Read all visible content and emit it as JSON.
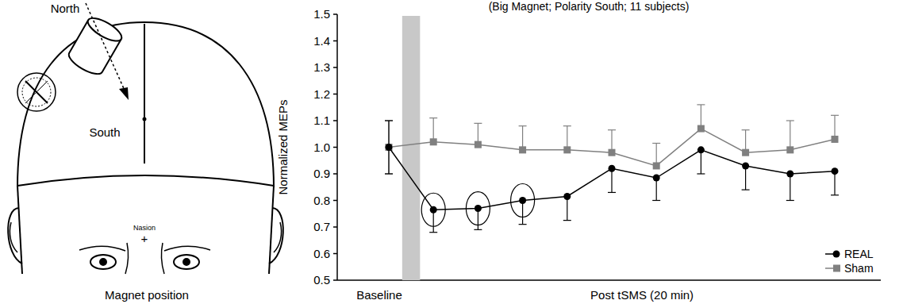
{
  "chart_data": {
    "type": "line",
    "title": "(Big Magnet; Polarity South; 11 subjects)",
    "y_label": "Normalized MEPs",
    "x_label": "Post tSMS (20 min)",
    "categories": [
      "Baseline",
      null,
      null,
      null,
      null,
      null,
      null,
      null,
      null,
      null,
      null
    ],
    "ylim": [
      0.5,
      1.5
    ],
    "yticks": [
      0.5,
      0.6,
      0.7,
      0.8,
      0.9,
      {
        "value": 1,
        "label": "1.0"
      },
      1.1,
      1.2,
      1.3,
      1.4,
      1.5
    ],
    "grid": false,
    "legend": "lower right",
    "series": [
      {
        "name": "REAL",
        "color": "#000000",
        "marker": "circle",
        "line_style": "solid",
        "values": [
          1.0,
          0.765,
          0.77,
          0.8,
          0.815,
          0.92,
          0.885,
          0.99,
          0.93,
          0.9,
          0.91
        ],
        "errors": [
          0.1,
          0.085,
          0.08,
          0.09,
          0.09,
          0.09,
          0.085,
          0.09,
          0.09,
          0.1,
          0.09
        ],
        "significant": [
          false,
          true,
          true,
          true,
          false,
          false,
          false,
          false,
          false,
          false,
          false
        ]
      },
      {
        "name": "Sham",
        "color": "#808080",
        "marker": "square",
        "line_style": "solid",
        "values": [
          1.0,
          1.02,
          1.01,
          0.99,
          0.99,
          0.98,
          0.93,
          1.07,
          0.98,
          0.99,
          1.03
        ],
        "errors": [
          0.1,
          0.09,
          0.08,
          0.09,
          0.09,
          0.085,
          0.085,
          0.09,
          0.085,
          0.11,
          0.09
        ],
        "significant": [
          false,
          false,
          false,
          false,
          false,
          false,
          false,
          false,
          false,
          false,
          false
        ]
      }
    ]
  },
  "diagram": {
    "north": "North",
    "south": "South",
    "nasion": "Nasion",
    "cross": "+",
    "caption": "Magnet position"
  }
}
